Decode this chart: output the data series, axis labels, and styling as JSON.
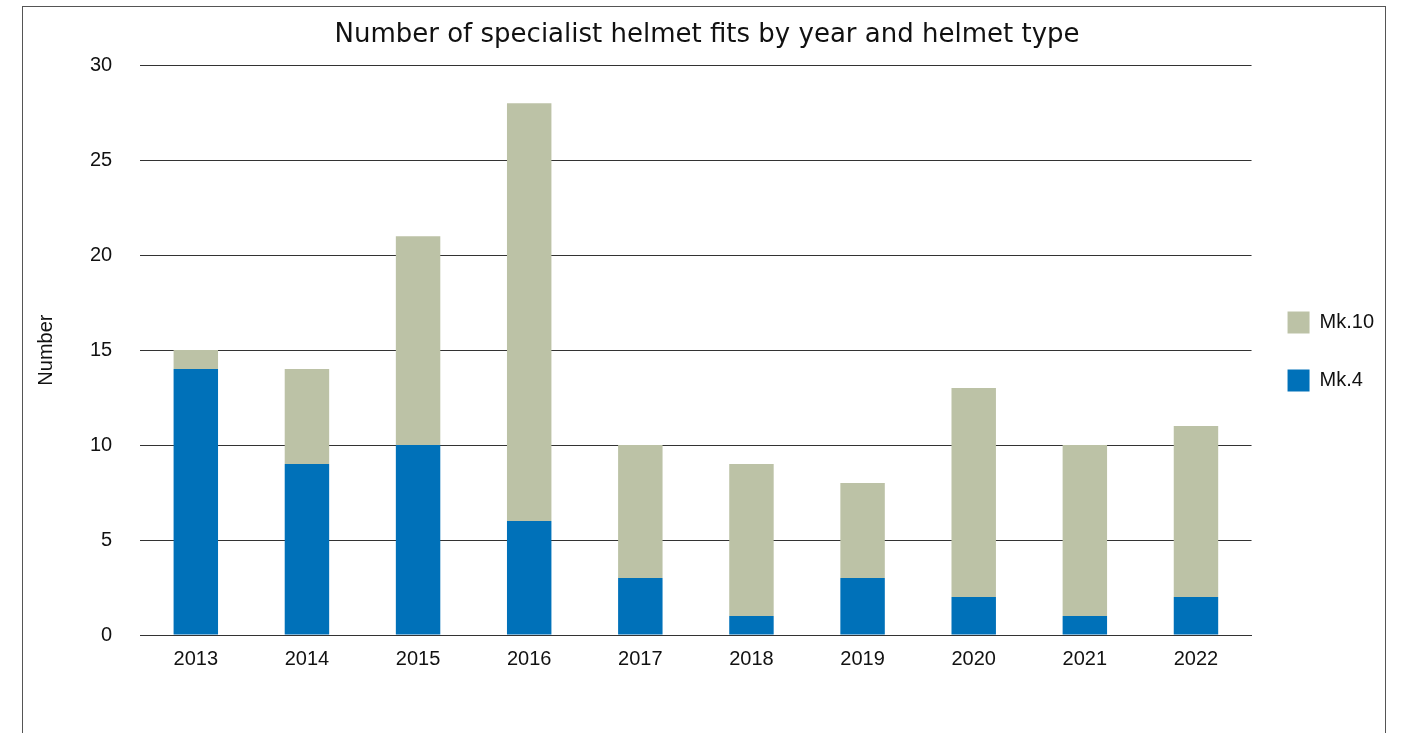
{
  "chart_data": {
    "type": "bar",
    "title": "Number of specialist helmet fits by year and helmet type",
    "ylabel": "Number",
    "categories": [
      "2013",
      "2014",
      "2015",
      "2016",
      "2017",
      "2018",
      "2019",
      "2020",
      "2021",
      "2022"
    ],
    "stacked": true,
    "series": [
      {
        "name": "Mk.4",
        "color": "#0071b9",
        "values": [
          14,
          9,
          10,
          6,
          3,
          1,
          3,
          2,
          1,
          2
        ]
      },
      {
        "name": "Mk.10",
        "color": "#bcc2a6",
        "values": [
          1,
          5,
          11,
          22,
          7,
          8,
          5,
          11,
          9,
          9
        ]
      }
    ],
    "ylim": [
      0,
      30
    ],
    "yticks": [
      0,
      5,
      10,
      15,
      20,
      25,
      30
    ],
    "grid": "y",
    "legend": "right"
  }
}
